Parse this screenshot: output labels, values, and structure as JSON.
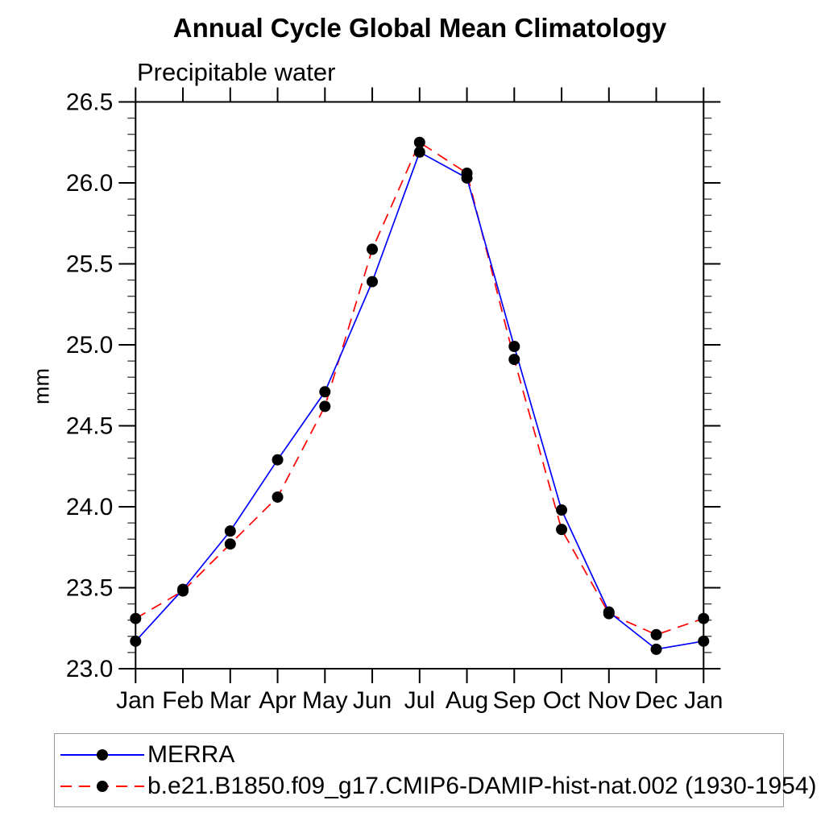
{
  "chart_data": {
    "type": "line",
    "title": "Annual Cycle Global Mean Climatology",
    "subtitle": "Precipitable water",
    "ylabel": "mm",
    "categories": [
      "Jan",
      "Feb",
      "Mar",
      "Apr",
      "May",
      "Jun",
      "Jul",
      "Aug",
      "Sep",
      "Oct",
      "Nov",
      "Dec",
      "Jan"
    ],
    "series": [
      {
        "name": "MERRA",
        "color": "#0000ff",
        "line_style": "solid",
        "marker": "black-dot",
        "values": [
          23.17,
          23.49,
          23.85,
          24.29,
          24.71,
          25.39,
          26.19,
          26.03,
          24.99,
          23.98,
          23.35,
          23.12,
          23.17
        ]
      },
      {
        "name": "b.e21.B1850.f09_g17.CMIP6-DAMIP-hist-nat.002 (1930-1954)",
        "color": "#ff0000",
        "line_style": "dashed",
        "marker": "black-dot",
        "values": [
          23.31,
          23.48,
          23.77,
          24.06,
          24.62,
          25.59,
          26.25,
          26.06,
          24.91,
          23.86,
          23.34,
          23.21,
          23.31
        ]
      }
    ],
    "ylim": [
      23.0,
      26.5
    ],
    "ytick_step": 0.5,
    "yminor_step": 0.1,
    "ytick_labels": [
      "23.0",
      "23.5",
      "24.0",
      "24.5",
      "25.0",
      "25.5",
      "26.0",
      "26.5"
    ],
    "grid": false,
    "legend_position": "bottom-left",
    "marker_color": "#000000"
  }
}
